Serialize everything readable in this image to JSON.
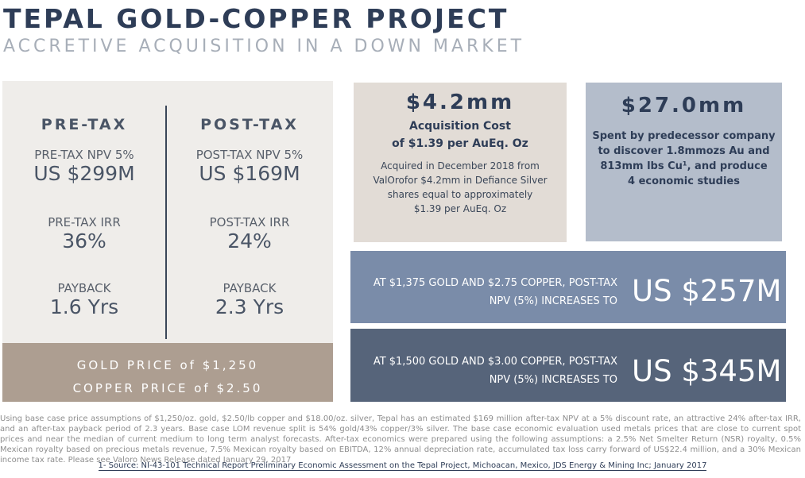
{
  "header": {
    "title": "TEPAL GOLD-COPPER PROJECT",
    "subtitle": "ACCRETIVE ACQUISITION IN A DOWN MARKET"
  },
  "pretax": {
    "heading": "PRE-TAX",
    "npv_label": "PRE-TAX NPV 5%",
    "npv_value": "US $299M",
    "irr_label": "PRE-TAX IRR",
    "irr_value": "36%",
    "payback_label": "PAYBACK",
    "payback_value": "1.6 Yrs"
  },
  "posttax": {
    "heading": "POST-TAX",
    "npv_label": "POST-TAX NPV 5%",
    "npv_value": "US $169M",
    "irr_label": "POST-TAX IRR",
    "irr_value": "24%",
    "payback_label": "PAYBACK",
    "payback_value": "2.3 Yrs"
  },
  "prices": {
    "gold": "GOLD PRICE of $1,250",
    "copper": "COPPER PRICE of $2.50"
  },
  "acquisition": {
    "amount": "$4.2mm",
    "line1": "Acquisition Cost",
    "line2": "of $1.39 per AuEq. Oz",
    "desc1": "Acquired in December 2018 from",
    "desc2": "ValOrofor $4.2mm in Defiance Silver",
    "desc3": "shares equal to approximately",
    "desc4": "$1.39 per AuEq. Oz"
  },
  "predecessor": {
    "amount": "$27.0mm",
    "line1": "Spent by predecessor company",
    "line2": "to discover 1.8mmozs Au and",
    "line3": "813mm lbs Cu¹, and produce",
    "line4": "4 economic studies"
  },
  "scenario1": {
    "text1": "AT $1,375 GOLD AND $2.75 COPPER, POST-TAX",
    "text2": "NPV (5%) INCREASES TO",
    "value": "US $257M"
  },
  "scenario2": {
    "text1": "AT $1,500 GOLD AND $3.00 COPPER, POST-TAX",
    "text2": "NPV (5%) INCREASES TO",
    "value": "US $345M"
  },
  "footnote": "Using base case price assumptions of $1,250/oz. gold, $2.50/lb copper and $18.00/oz. silver, Tepal has an estimated $169 million after-tax NPV at a 5% discount rate, an attractive 24% after-tax IRR, and an after-tax payback period of 2.3 years. Base case LOM revenue split is 54% gold/43% copper/3% silver. The base case economic evaluation used metals prices that are close to current spot prices and near the median of current medium to long term analyst forecasts. After-tax economics were prepared using the following assumptions: a 2.5% Net Smelter Return (NSR) royalty, 0.5% Mexican royalty based on precious metals revenue, 7.5% Mexican royalty based on EBITDA, 12% annual depreciation rate, accumulated tax loss carry forward of US$22.4 million, and a 30% Mexican income tax rate.  Please see Valoro News Release dated January 29, 2017",
  "source": "1- Source: NI-43-101 Technical Report Preliminary Economic Assessment on the Tepal Project, Michoacan, Mexico, JDS Energy & Mining Inc; January 2017"
}
